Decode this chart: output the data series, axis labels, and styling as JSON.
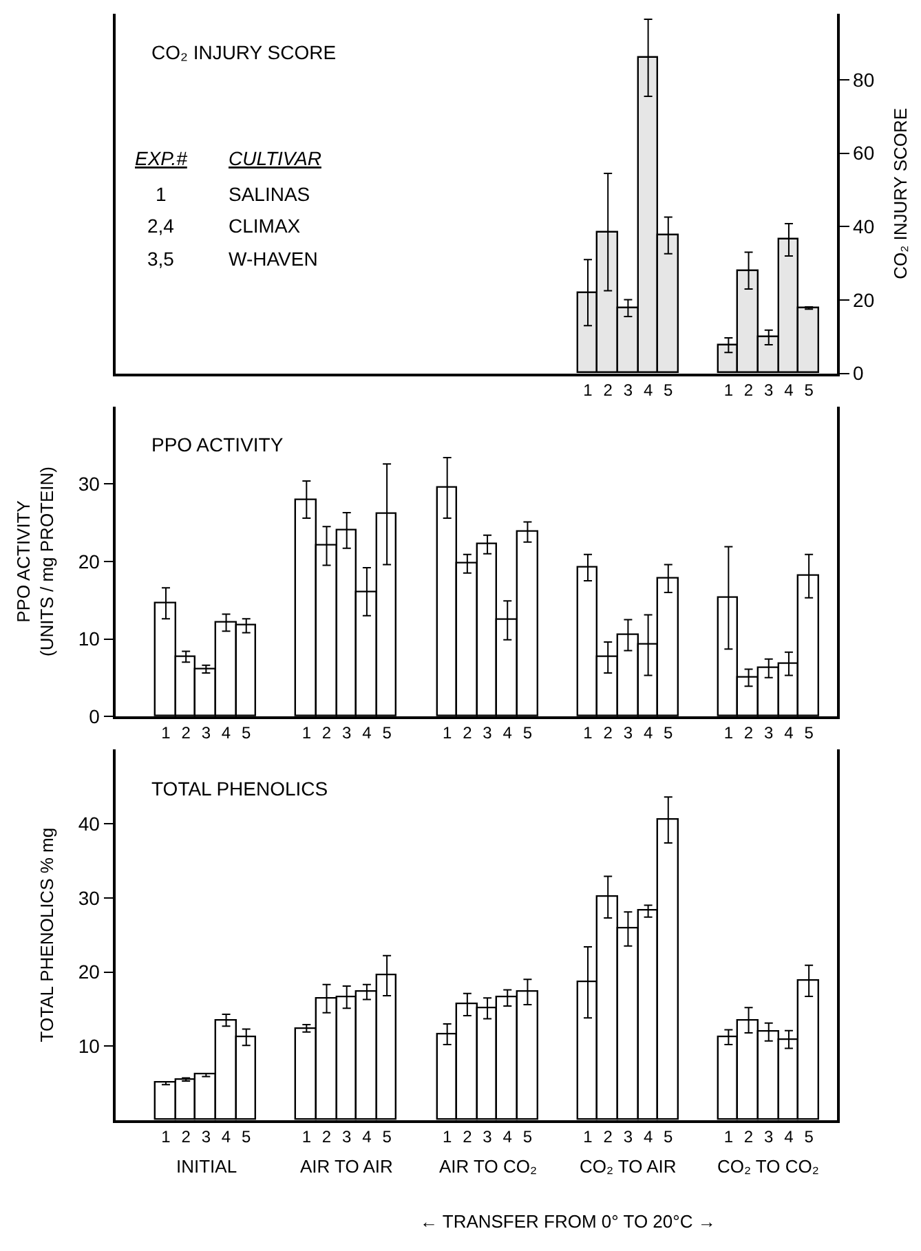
{
  "chart_data": [
    {
      "type": "bar",
      "title": "CO₂ INJURY SCORE",
      "categories": [
        null,
        null,
        null,
        null,
        null,
        null,
        null,
        null,
        null,
        null,
        null,
        null,
        null,
        null,
        null,
        null,
        null,
        null,
        null,
        null,
        null,
        "1",
        "2",
        "3",
        "4",
        "5",
        null,
        null,
        "1",
        "2",
        "3",
        "4",
        "5"
      ],
      "series": [
        {
          "color": "#e6e6e6",
          "axis": "y2",
          "values": [
            null,
            null,
            null,
            null,
            null,
            null,
            null,
            null,
            null,
            null,
            null,
            null,
            null,
            null,
            null,
            null,
            null,
            null,
            null,
            null,
            null,
            22,
            38.5,
            17.8,
            86,
            37.6,
            null,
            null,
            7.7,
            28,
            9.8,
            36.4,
            17.8
          ],
          "errors": [
            null,
            null,
            null,
            null,
            null,
            null,
            null,
            null,
            null,
            null,
            null,
            null,
            null,
            null,
            null,
            null,
            null,
            null,
            null,
            null,
            null,
            9,
            16,
            2.3,
            10.5,
            5,
            null,
            null,
            2,
            5,
            2,
            4.4,
            0.3
          ]
        }
      ],
      "y2label": "CO₂ INJURY SCORE",
      "y2lim": [
        0,
        98
      ],
      "y2ticks": [
        0,
        20,
        40,
        60,
        80
      ],
      "grid": false,
      "annotations": [
        "EXP.#",
        "CULTIVAR",
        "1",
        "SALINAS",
        "2,4",
        "CLIMAX",
        "3,5",
        "W-HAVEN"
      ]
    },
    {
      "type": "bar",
      "title": "PPO ACTIVITY",
      "categories": [
        "1",
        "2",
        "3",
        "4",
        "5",
        null,
        null,
        "1",
        "2",
        "3",
        "4",
        "5",
        null,
        null,
        "1",
        "2",
        "3",
        "4",
        "5",
        null,
        null,
        "1",
        "2",
        "3",
        "4",
        "5",
        null,
        null,
        "1",
        "2",
        "3",
        "4",
        "5"
      ],
      "series": [
        {
          "color": "#ffffff",
          "values": [
            14.6,
            7.7,
            6.1,
            12.1,
            11.7,
            null,
            null,
            28,
            22,
            24,
            16.1,
            26.1,
            null,
            null,
            29.5,
            19.7,
            22.2,
            12.4,
            23.8,
            null,
            null,
            19.2,
            7.6,
            10.5,
            9.2,
            17.8,
            null,
            null,
            15.3,
            5,
            6.2,
            6.8,
            18.1
          ],
          "errors": [
            2,
            0.7,
            0.5,
            1.1,
            0.9,
            null,
            null,
            2.4,
            2.5,
            2.3,
            3.1,
            6.5,
            null,
            null,
            3.9,
            1.2,
            1.2,
            2.5,
            1.3,
            null,
            null,
            1.7,
            2,
            2,
            3.9,
            1.8,
            null,
            null,
            6.6,
            1.1,
            1.2,
            1.5,
            2.8
          ]
        }
      ],
      "ylabel": "PPO ACTIVITY\n(UNITS / mg PROTEIN)",
      "ylim": [
        0,
        40
      ],
      "yticks": [
        0,
        10,
        20,
        30
      ],
      "grid": false
    },
    {
      "type": "bar",
      "title": "TOTAL PHENOLICS",
      "categories": [
        "1",
        "2",
        "3",
        "4",
        "5",
        null,
        null,
        "1",
        "2",
        "3",
        "4",
        "5",
        null,
        null,
        "1",
        "2",
        "3",
        "4",
        "5",
        null,
        null,
        "1",
        "2",
        "3",
        "4",
        "5",
        null,
        null,
        "1",
        "2",
        "3",
        "4",
        "5"
      ],
      "series": [
        {
          "color": "#ffffff",
          "values": [
            5.0,
            5.5,
            6.1,
            13.5,
            11.2,
            null,
            null,
            12.4,
            16.4,
            16.6,
            17.3,
            19.5,
            null,
            null,
            11.6,
            15.6,
            15.1,
            16.5,
            17.3,
            null,
            null,
            18.6,
            30.1,
            25.8,
            28.2,
            40.5,
            null,
            null,
            11.2,
            13.5,
            11.9,
            10.9,
            18.8
          ],
          "errors": [
            0.2,
            0.2,
            0.2,
            0.8,
            1.1,
            null,
            null,
            0.5,
            1.9,
            1.5,
            1,
            2.7,
            null,
            null,
            1.4,
            1.5,
            1.4,
            1.1,
            1.7,
            null,
            null,
            4.8,
            2.8,
            2.3,
            0.8,
            3.1,
            null,
            null,
            1,
            1.7,
            1.2,
            1.2,
            2.1
          ]
        }
      ],
      "ylabel": "TOTAL PHENOLICS % mg",
      "ylim": [
        0,
        50
      ],
      "yticks": [
        10,
        20,
        30,
        40
      ],
      "grid": false,
      "annotations": [
        "INITIAL",
        "AIR TO AIR",
        "AIR TO CO₂",
        "CO₂ TO AIR",
        "CO₂ TO CO₂",
        "← TRANSFER FROM 0° TO 20°C →"
      ]
    }
  ]
}
